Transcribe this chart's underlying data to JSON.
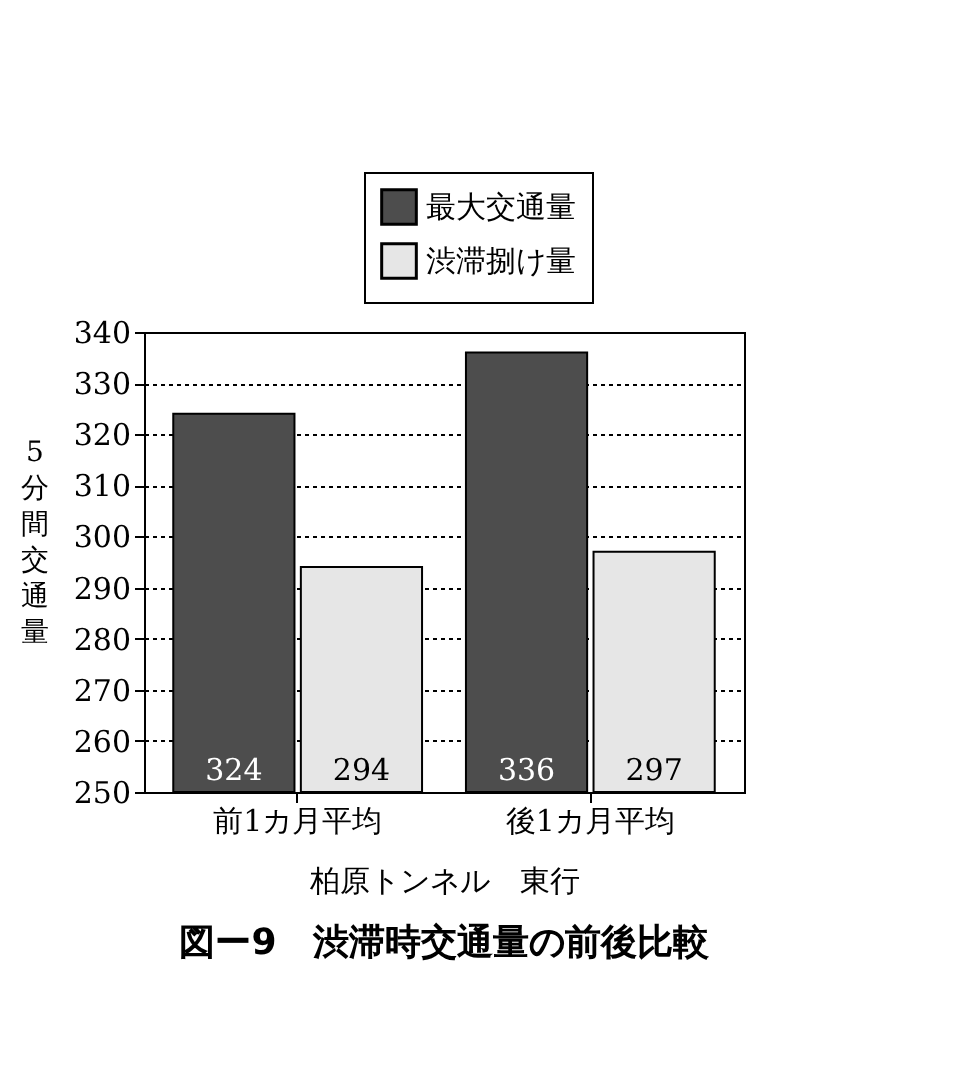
{
  "chart_data": {
    "type": "bar",
    "title": "図ー9　渋滞時交通量の前後比較",
    "xlabel": "柏原トンネル　東行",
    "ylabel": "5分間交通量",
    "categories": [
      "前1カ月平均",
      "後1カ月平均"
    ],
    "series": [
      {
        "name": "最大交通量",
        "color": "#4d4d4d",
        "values": [
          324,
          336
        ]
      },
      {
        "name": "渋滞捌け量",
        "color": "#e6e6e6",
        "values": [
          294,
          297
        ]
      }
    ],
    "ylim": [
      250,
      340
    ],
    "yticks": [
      250,
      260,
      270,
      280,
      290,
      300,
      310,
      320,
      330,
      340
    ],
    "grid": "y",
    "legend": "top right",
    "data_labels": true
  }
}
